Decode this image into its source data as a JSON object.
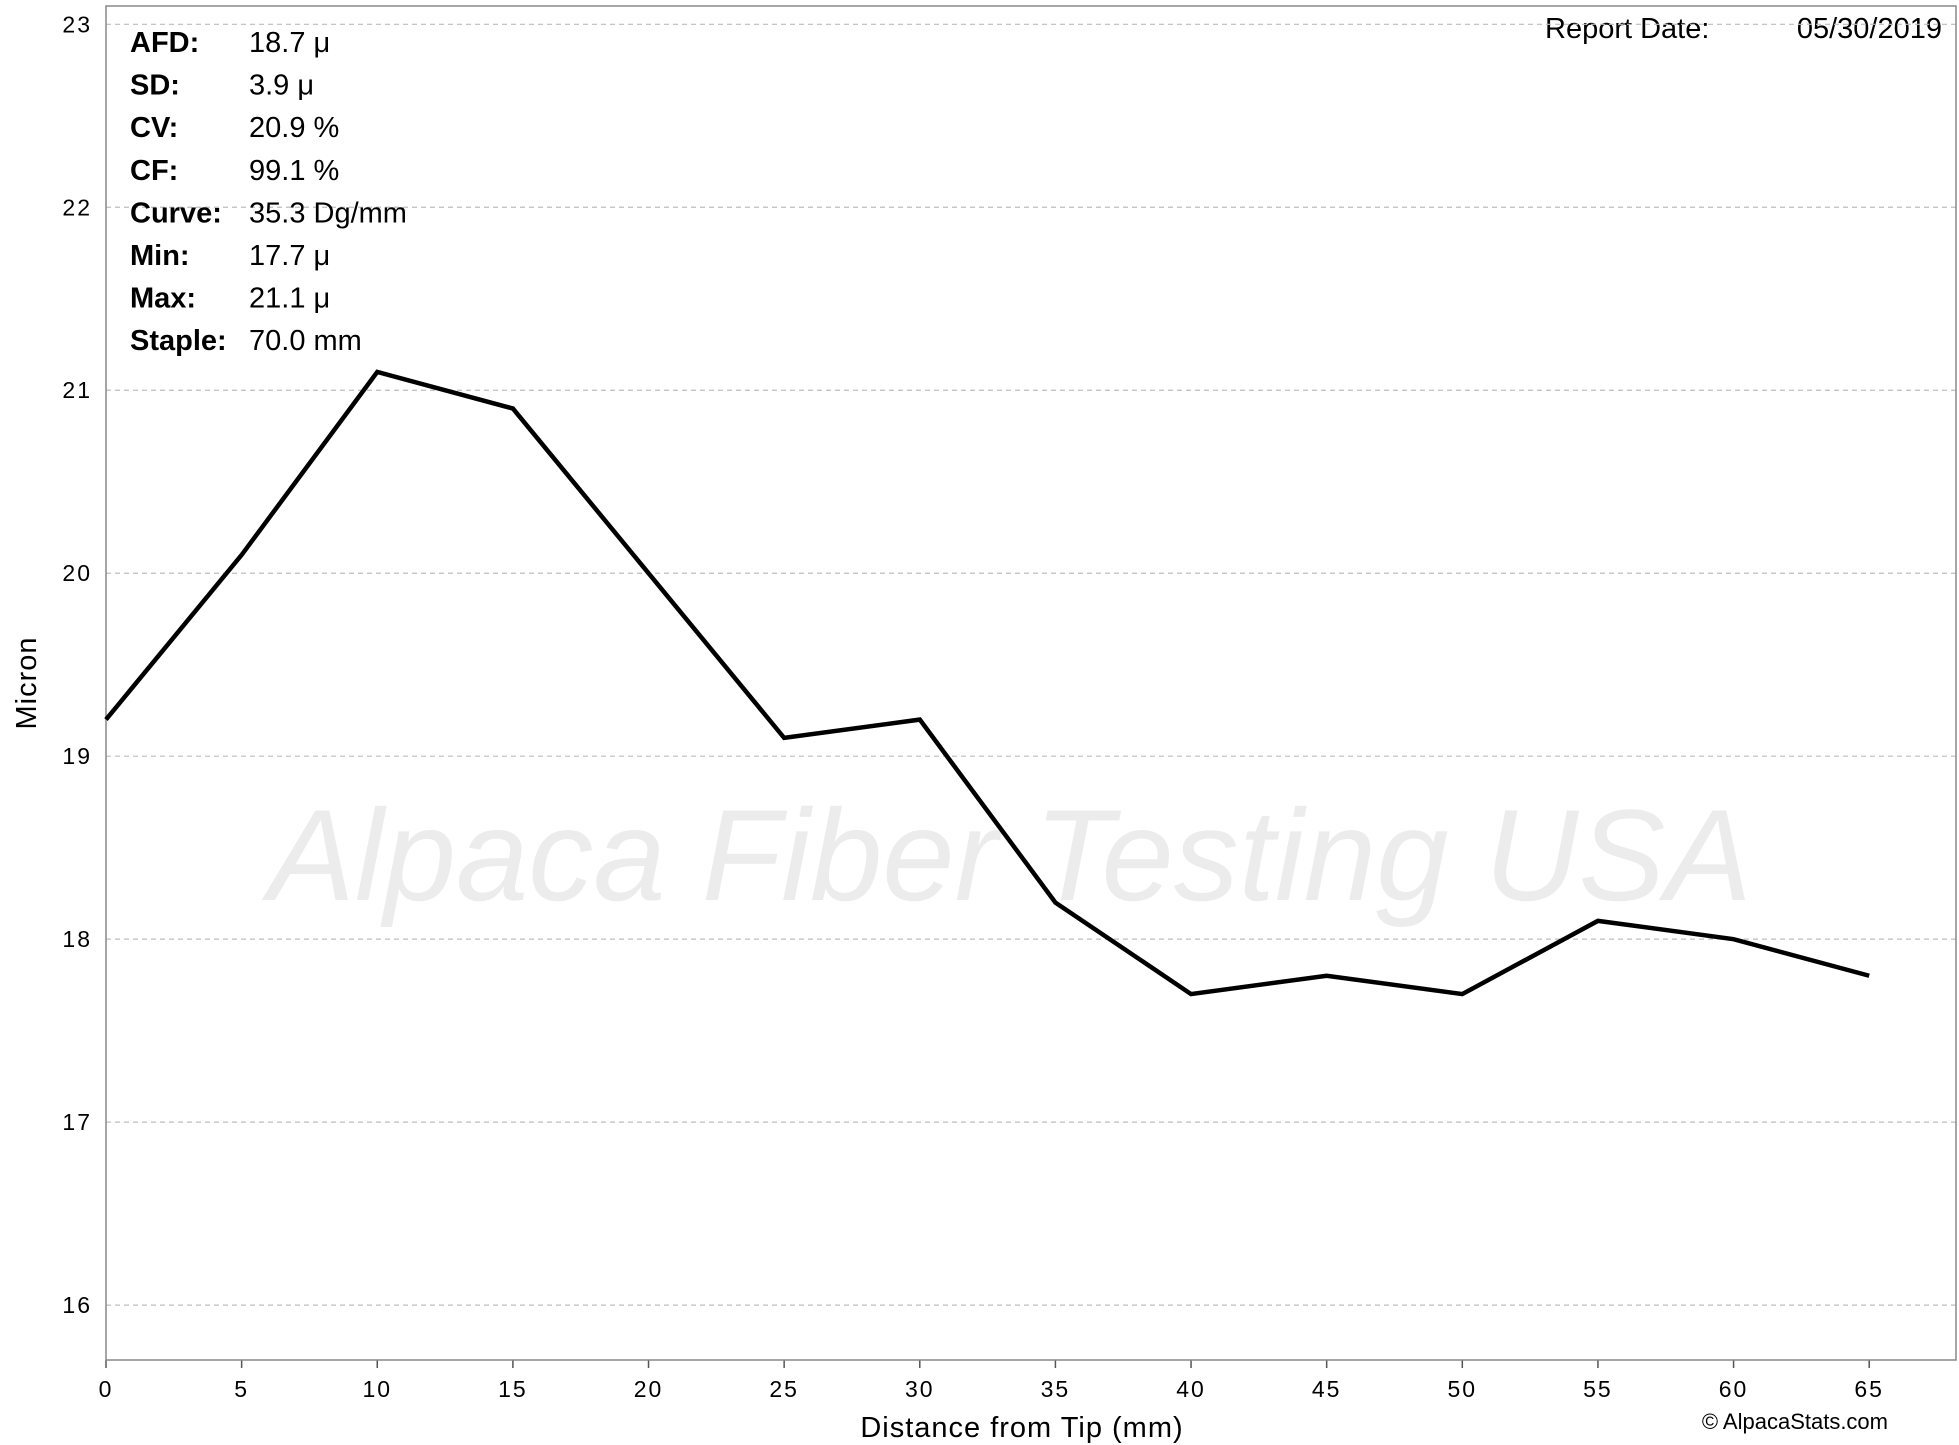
{
  "chart_data": {
    "type": "line",
    "x_label": "Distance from Tip (mm)",
    "y_label": "Micron",
    "x": [
      0,
      5,
      10,
      15,
      20,
      25,
      30,
      35,
      40,
      45,
      50,
      55,
      60,
      65
    ],
    "series": [
      {
        "name": "Micron",
        "color": "#000000",
        "values": [
          19.2,
          20.1,
          21.1,
          20.9,
          20.0,
          19.1,
          19.2,
          18.2,
          17.7,
          17.8,
          17.7,
          18.1,
          18.0,
          17.8
        ]
      }
    ],
    "xlim": [
      0,
      68.2
    ],
    "ylim": [
      15.7,
      23.1
    ],
    "xticks": [
      0,
      5,
      10,
      15,
      20,
      25,
      30,
      35,
      40,
      45,
      50,
      55,
      60,
      65
    ],
    "yticks": [
      16,
      17,
      18,
      19,
      20,
      21,
      22,
      23
    ],
    "grid": true,
    "stats": [
      {
        "label": "AFD:",
        "value": "18.7 μ"
      },
      {
        "label": "SD:",
        "value": "3.9 μ"
      },
      {
        "label": "CV:",
        "value": "20.9 %"
      },
      {
        "label": "CF:",
        "value": "99.1 %"
      },
      {
        "label": "Curve:",
        "value": "35.3 Dg/mm"
      },
      {
        "label": "Min:",
        "value": "17.7 μ"
      },
      {
        "label": "Max:",
        "value": "21.1 μ"
      },
      {
        "label": "Staple:",
        "value": "70.0 mm"
      }
    ],
    "report_date": {
      "label": "Report Date:",
      "value": "05/30/2019"
    },
    "watermark": "Alpaca Fiber Testing USA",
    "copyright": "© AlpacaStats.com"
  }
}
